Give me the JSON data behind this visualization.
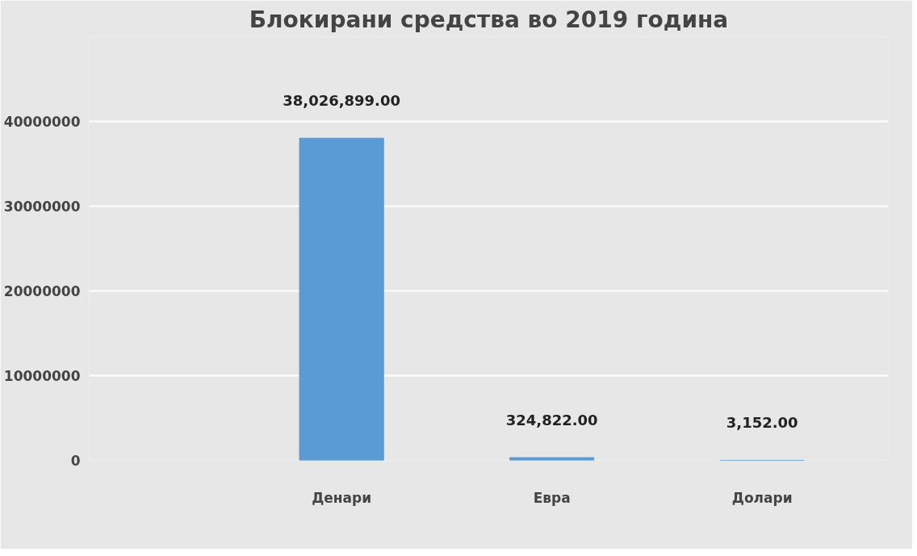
{
  "chart_data": {
    "type": "bar",
    "title": "Блокирани средства во 2019 година",
    "categories": [
      "Денари",
      "Евра",
      "Долари"
    ],
    "values": [
      38026899,
      324822,
      3152
    ],
    "value_labels": [
      "38,026,899.00",
      "324,822.00",
      "3,152.00"
    ],
    "color": "#5b9bd5",
    "ylim": [
      0,
      50000000
    ],
    "yticks": [
      0,
      10000000,
      20000000,
      30000000,
      40000000,
      {
        "value": 50000000,
        "label": null
      }
    ],
    "grid": "y"
  }
}
